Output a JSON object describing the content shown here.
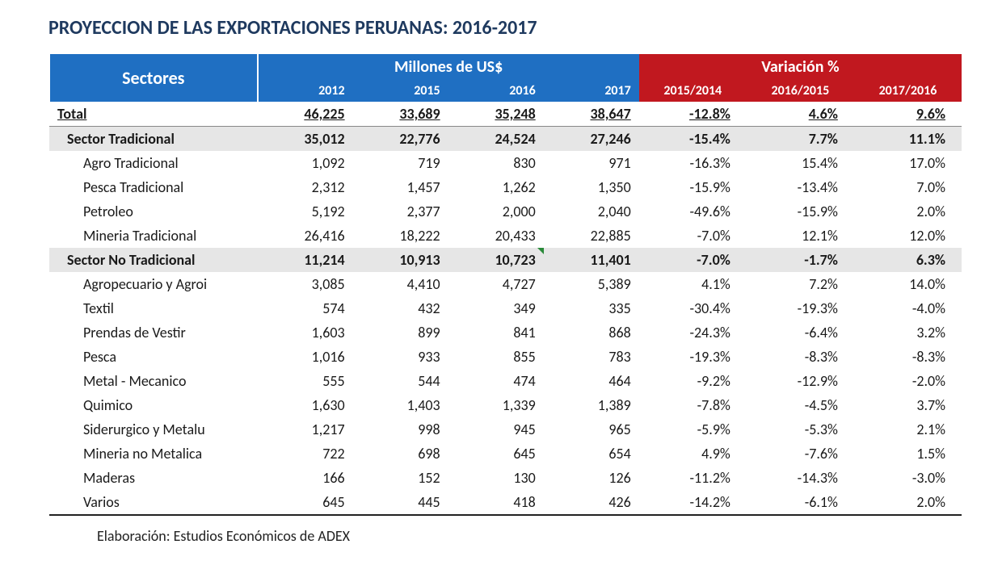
{
  "title": "PROYECCION DE LAS EXPORTACIONES PERUANAS: 2016-2017",
  "headers": {
    "sectores": "Sectores",
    "millones": "Millones de US$",
    "variacion": "Variación %",
    "years": [
      "2012",
      "2015",
      "2016",
      "2017"
    ],
    "vars": [
      "2015/2014",
      "2016/2015",
      "2017/2016"
    ]
  },
  "total": {
    "label": "Total",
    "vals": [
      "46,225",
      "33,689",
      "35,248",
      "38,647"
    ],
    "pcts": [
      "-12.8%",
      "4.6%",
      "9.6%"
    ]
  },
  "sectorTrad": {
    "label": "Sector Tradicional",
    "vals": [
      "35,012",
      "22,776",
      "24,524",
      "27,246"
    ],
    "pcts": [
      "-15.4%",
      "7.7%",
      "11.1%"
    ]
  },
  "tradRows": [
    {
      "label": "Agro Tradicional",
      "vals": [
        "1,092",
        "719",
        "830",
        "971"
      ],
      "pcts": [
        "-16.3%",
        "15.4%",
        "17.0%"
      ]
    },
    {
      "label": "Pesca Tradicional",
      "vals": [
        "2,312",
        "1,457",
        "1,262",
        "1,350"
      ],
      "pcts": [
        "-15.9%",
        "-13.4%",
        "7.0%"
      ]
    },
    {
      "label": "Petroleo",
      "vals": [
        "5,192",
        "2,377",
        "2,000",
        "2,040"
      ],
      "pcts": [
        "-49.6%",
        "-15.9%",
        "2.0%"
      ]
    },
    {
      "label": "Mineria Tradicional",
      "vals": [
        "26,416",
        "18,222",
        "20,433",
        "22,885"
      ],
      "pcts": [
        "-7.0%",
        "12.1%",
        "12.0%"
      ]
    }
  ],
  "sectorNoTrad": {
    "label": "Sector No Tradicional",
    "vals": [
      "11,214",
      "10,913",
      "10,723",
      "11,401"
    ],
    "pcts": [
      "-7.0%",
      "-1.7%",
      "6.3%"
    ],
    "markerCol": 2
  },
  "noTradRows": [
    {
      "label": "Agropecuario y Agroi",
      "vals": [
        "3,085",
        "4,410",
        "4,727",
        "5,389"
      ],
      "pcts": [
        "4.1%",
        "7.2%",
        "14.0%"
      ]
    },
    {
      "label": "Textil",
      "vals": [
        "574",
        "432",
        "349",
        "335"
      ],
      "pcts": [
        "-30.4%",
        "-19.3%",
        "-4.0%"
      ]
    },
    {
      "label": "Prendas de Vestir",
      "vals": [
        "1,603",
        "899",
        "841",
        "868"
      ],
      "pcts": [
        "-24.3%",
        "-6.4%",
        "3.2%"
      ]
    },
    {
      "label": "Pesca",
      "vals": [
        "1,016",
        "933",
        "855",
        "783"
      ],
      "pcts": [
        "-19.3%",
        "-8.3%",
        "-8.3%"
      ]
    },
    {
      "label": "Metal - Mecanico",
      "vals": [
        "555",
        "544",
        "474",
        "464"
      ],
      "pcts": [
        "-9.2%",
        "-12.9%",
        "-2.0%"
      ]
    },
    {
      "label": "Quimico",
      "vals": [
        "1,630",
        "1,403",
        "1,339",
        "1,389"
      ],
      "pcts": [
        "-7.8%",
        "-4.5%",
        "3.7%"
      ]
    },
    {
      "label": "Siderurgico y Metalu",
      "vals": [
        "1,217",
        "998",
        "945",
        "965"
      ],
      "pcts": [
        "-5.9%",
        "-5.3%",
        "2.1%"
      ]
    },
    {
      "label": "Mineria no Metalica",
      "vals": [
        "722",
        "698",
        "645",
        "654"
      ],
      "pcts": [
        "4.9%",
        "-7.6%",
        "1.5%"
      ]
    },
    {
      "label": "Maderas",
      "vals": [
        "166",
        "152",
        "130",
        "126"
      ],
      "pcts": [
        "-11.2%",
        "-14.3%",
        "-3.0%"
      ]
    },
    {
      "label": "Varios",
      "vals": [
        "645",
        "445",
        "418",
        "426"
      ],
      "pcts": [
        "-14.2%",
        "-6.1%",
        "2.0%"
      ]
    }
  ],
  "footnote": "Elaboración: Estudios Económicos de ADEX",
  "style": {
    "title_color": "#1f3a5f",
    "header_blue": "#1f6fc2",
    "header_red": "#c1181f",
    "sector_bg": "#e6e6e6",
    "marker_color": "#2a8a3a",
    "font": "Calibri",
    "title_fontsize": 24,
    "body_fontsize": 18
  }
}
